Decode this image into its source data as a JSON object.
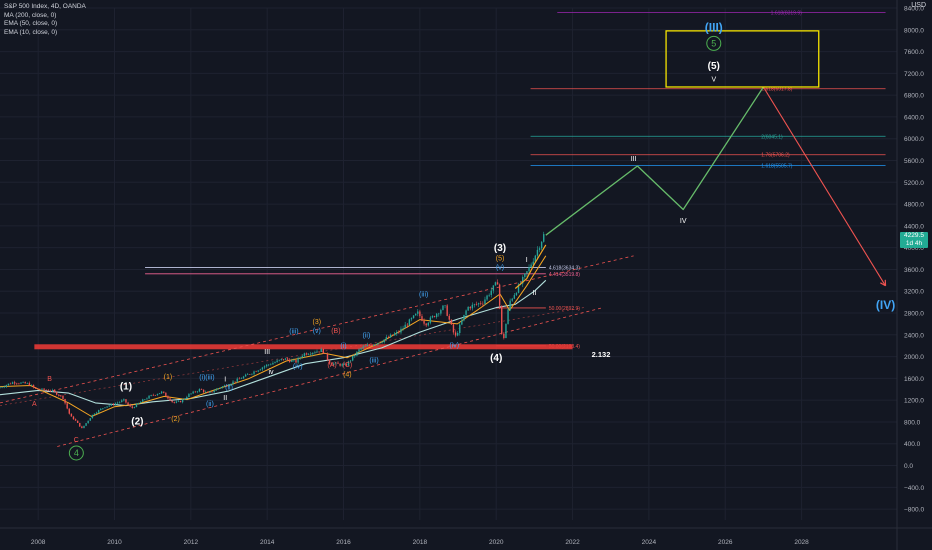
{
  "legend": {
    "line1": "S&P 500 Index, 4D, OANDA",
    "line2": "MA (200, close, 0)",
    "line3": "EMA (50, close, 0)",
    "line4": "EMA (10, close, 0)"
  },
  "axis_currency": "USD",
  "last_price": {
    "value": "4229.5",
    "sub": "1d 4h"
  },
  "colors": {
    "background": "#131722",
    "grid": "#1e2230",
    "candle_up": "#26a69a",
    "candle_down": "#ef5350",
    "ma200": "#b2dfdb",
    "ema50": "#f5a623",
    "ema10": "#f5a623",
    "projection_up": "#66bb6a",
    "projection_down": "#ef5350",
    "support": "#e53935",
    "box": "#f5e400",
    "wave_white": "#ffffff",
    "wave_orange": "#f5a623",
    "wave_blue": "#42a5f5",
    "wave_red": "#ef5350",
    "wave_green": "#4caf50"
  },
  "chart_data": {
    "type": "line",
    "title": "S&P 500 Index, 4D, OANDA",
    "x_axis": {
      "type": "date",
      "ticks": [
        "2008",
        "2010",
        "2012",
        "2014",
        "2016",
        "2018",
        "2020",
        "2022",
        "2024",
        "2026",
        "2028"
      ],
      "range": [
        2007.0,
        2030.5
      ]
    },
    "y_axis": {
      "position": "right",
      "label": "USD",
      "range": [
        -1000,
        8400
      ],
      "ticks": [
        "8400.0",
        "8000.0",
        "7600.0",
        "7200.0",
        "6800.0",
        "6400.0",
        "6000.0",
        "5600.0",
        "5200.0",
        "4800.0",
        "4400.0",
        "4000.0",
        "3600.0",
        "3200.0",
        "2800.0",
        "2400.0",
        "2000.0",
        "1600.0",
        "1200.0",
        "800.0",
        "400.0",
        "0.0",
        "−400.0",
        "−800.0"
      ]
    },
    "grid": true,
    "series": [
      {
        "name": "S&P 500",
        "values": [
          [
            2007.0,
            1420
          ],
          [
            2007.4,
            1530
          ],
          [
            2007.8,
            1500
          ],
          [
            2008.0,
            1400
          ],
          [
            2008.4,
            1380
          ],
          [
            2008.7,
            1250
          ],
          [
            2008.9,
            900
          ],
          [
            2009.0,
            850
          ],
          [
            2009.2,
            680
          ],
          [
            2009.5,
            950
          ],
          [
            2009.8,
            1080
          ],
          [
            2010.0,
            1120
          ],
          [
            2010.3,
            1200
          ],
          [
            2010.5,
            1050
          ],
          [
            2010.8,
            1200
          ],
          [
            2011.0,
            1280
          ],
          [
            2011.3,
            1350
          ],
          [
            2011.6,
            1150
          ],
          [
            2011.8,
            1180
          ],
          [
            2012.0,
            1300
          ],
          [
            2012.3,
            1400
          ],
          [
            2012.5,
            1320
          ],
          [
            2012.8,
            1430
          ],
          [
            2013.0,
            1480
          ],
          [
            2013.5,
            1650
          ],
          [
            2014.0,
            1830
          ],
          [
            2014.5,
            1960
          ],
          [
            2014.8,
            1900
          ],
          [
            2015.0,
            2050
          ],
          [
            2015.5,
            2120
          ],
          [
            2015.7,
            1880
          ],
          [
            2016.0,
            1850
          ],
          [
            2016.1,
            1830
          ],
          [
            2016.5,
            2150
          ],
          [
            2017.0,
            2270
          ],
          [
            2017.5,
            2450
          ],
          [
            2018.0,
            2800
          ],
          [
            2018.2,
            2600
          ],
          [
            2018.7,
            2930
          ],
          [
            2018.98,
            2350
          ],
          [
            2019.3,
            2900
          ],
          [
            2019.7,
            3000
          ],
          [
            2020.1,
            3380
          ],
          [
            2020.22,
            2200
          ],
          [
            2020.4,
            3000
          ],
          [
            2020.7,
            3350
          ],
          [
            2020.9,
            3600
          ],
          [
            2021.1,
            3900
          ],
          [
            2021.3,
            4229
          ]
        ]
      },
      {
        "name": "MA (200, close, 0)",
        "values": [
          [
            2007.0,
            1300
          ],
          [
            2008.0,
            1380
          ],
          [
            2008.8,
            1330
          ],
          [
            2009.5,
            1150
          ],
          [
            2010.3,
            1100
          ],
          [
            2011.0,
            1170
          ],
          [
            2012.0,
            1230
          ],
          [
            2013.0,
            1370
          ],
          [
            2014.0,
            1620
          ],
          [
            2015.0,
            1870
          ],
          [
            2016.0,
            1980
          ],
          [
            2017.0,
            2160
          ],
          [
            2018.0,
            2450
          ],
          [
            2019.0,
            2690
          ],
          [
            2020.0,
            2900
          ],
          [
            2020.5,
            2960
          ],
          [
            2021.0,
            3200
          ],
          [
            2021.3,
            3400
          ]
        ]
      },
      {
        "name": "EMA (50, close, 0)",
        "values": [
          [
            2007.0,
            1450
          ],
          [
            2007.8,
            1470
          ],
          [
            2008.8,
            1150
          ],
          [
            2009.4,
            900
          ],
          [
            2010.0,
            1080
          ],
          [
            2010.6,
            1130
          ],
          [
            2011.3,
            1270
          ],
          [
            2011.9,
            1210
          ],
          [
            2012.5,
            1360
          ],
          [
            2013.5,
            1590
          ],
          [
            2014.5,
            1920
          ],
          [
            2015.5,
            2060
          ],
          [
            2016.1,
            1980
          ],
          [
            2017.0,
            2270
          ],
          [
            2018.0,
            2680
          ],
          [
            2018.98,
            2600
          ],
          [
            2019.5,
            2850
          ],
          [
            2020.1,
            3150
          ],
          [
            2020.35,
            2850
          ],
          [
            2020.8,
            3300
          ],
          [
            2021.3,
            3850
          ]
        ]
      },
      {
        "name": "Projection",
        "values": [
          [
            2021.3,
            4229
          ],
          [
            2023.7,
            5500
          ],
          [
            2024.9,
            4700
          ],
          [
            2027.0,
            6950
          ],
          [
            2030.2,
            3300
          ]
        ]
      }
    ],
    "fib_levels": [
      {
        "label": "1.618(8319.9)",
        "value": 8319.9
      },
      {
        "label": "2.618(6917.8)",
        "value": 6917.8
      },
      {
        "label": "2(6045.1)",
        "value": 6045.1
      },
      {
        "label": "1.76(5706.2)",
        "value": 5706.2
      },
      {
        "label": "1.618(5505.7)",
        "value": 5505.7
      },
      {
        "label": "4.618(3634.3)",
        "value": 3634.3
      },
      {
        "label": "4.414(3519.8)",
        "value": 3519.8
      },
      {
        "label": "50.00(2892.9)",
        "value": 2892.9
      },
      {
        "label": "50.00(2198.4)",
        "value": 2198.4
      }
    ],
    "support_label": "2.132",
    "annotations": [
      {
        "text": "(III)",
        "color": "blue",
        "x": 2025.7,
        "y": 8050
      },
      {
        "text": "5",
        "color": "green",
        "circled": true,
        "x": 2025.7,
        "y": 7750
      },
      {
        "text": "(5)",
        "color": "white",
        "x": 2025.7,
        "y": 7340
      },
      {
        "text": "V",
        "color": "white",
        "x": 2025.7,
        "y": 7100
      },
      {
        "text": "III",
        "color": "white",
        "x": 2023.6,
        "y": 5640
      },
      {
        "text": "IV",
        "color": "white",
        "x": 2024.9,
        "y": 4500
      },
      {
        "text": "(IV)",
        "color": "blue",
        "x": 2030.2,
        "y": 2950
      },
      {
        "text": "(3)",
        "color": "white",
        "x": 2020.1,
        "y": 4000
      },
      {
        "text": "(5)",
        "color": "orange",
        "x": 2020.1,
        "y": 3810
      },
      {
        "text": "(v)",
        "color": "blue",
        "x": 2020.1,
        "y": 3640
      },
      {
        "text": "I",
        "color": "white",
        "x": 2020.8,
        "y": 3780
      },
      {
        "text": "II",
        "color": "white",
        "x": 2021.0,
        "y": 3180
      },
      {
        "text": "(4)",
        "color": "white",
        "x": 2020.0,
        "y": 1980
      },
      {
        "text": "(iv)",
        "color": "blue",
        "x": 2018.9,
        "y": 2210
      },
      {
        "text": "(iii)",
        "color": "blue",
        "x": 2018.1,
        "y": 3150
      },
      {
        "text": "(ii)",
        "color": "blue",
        "x": 2016.6,
        "y": 2400
      },
      {
        "text": "(i)",
        "color": "blue",
        "x": 2016.0,
        "y": 2200
      },
      {
        "text": "(iii)",
        "color": "blue",
        "x": 2016.8,
        "y": 1940
      },
      {
        "text": "(3)",
        "color": "orange",
        "x": 2015.3,
        "y": 2640
      },
      {
        "text": "(v)",
        "color": "blue",
        "x": 2015.3,
        "y": 2480
      },
      {
        "text": "(B)",
        "color": "red",
        "x": 2015.8,
        "y": 2480
      },
      {
        "text": "(iii)",
        "color": "blue",
        "x": 2014.7,
        "y": 2470
      },
      {
        "text": "III",
        "color": "white",
        "x": 2014.0,
        "y": 2090
      },
      {
        "text": "(iv)",
        "color": "blue",
        "x": 2014.8,
        "y": 1830
      },
      {
        "text": "iv",
        "color": "white",
        "x": 2014.1,
        "y": 1730
      },
      {
        "text": "(A)",
        "color": "red",
        "x": 2015.7,
        "y": 1850
      },
      {
        "text": "(C)",
        "color": "red",
        "x": 2016.1,
        "y": 1850
      },
      {
        "text": "(4)",
        "color": "orange",
        "x": 2016.1,
        "y": 1680
      },
      {
        "text": "(iii)",
        "color": "blue",
        "x": 2012.5,
        "y": 1620
      },
      {
        "text": "I",
        "color": "white",
        "x": 2012.9,
        "y": 1590
      },
      {
        "text": "(ii)",
        "color": "blue",
        "x": 2013.0,
        "y": 1440
      },
      {
        "text": "II",
        "color": "white",
        "x": 2012.9,
        "y": 1250
      },
      {
        "text": "(i)",
        "color": "blue",
        "x": 2012.3,
        "y": 1620
      },
      {
        "text": "(ii)",
        "color": "blue",
        "x": 2012.5,
        "y": 1140
      },
      {
        "text": "(1)",
        "color": "white",
        "x": 2010.3,
        "y": 1460
      },
      {
        "text": "(1)",
        "color": "orange",
        "x": 2011.4,
        "y": 1630
      },
      {
        "text": "(2)",
        "color": "orange",
        "x": 2011.6,
        "y": 860
      },
      {
        "text": "(2)",
        "color": "white",
        "x": 2010.6,
        "y": 820
      },
      {
        "text": "4",
        "color": "green",
        "circled": true,
        "x": 2009.0,
        "y": 230
      },
      {
        "text": "A",
        "color": "red",
        "x": 2007.9,
        "y": 1140
      },
      {
        "text": "B",
        "color": "red",
        "x": 2008.3,
        "y": 1600
      },
      {
        "text": "C",
        "color": "red",
        "x": 2009.0,
        "y": 480
      }
    ]
  }
}
